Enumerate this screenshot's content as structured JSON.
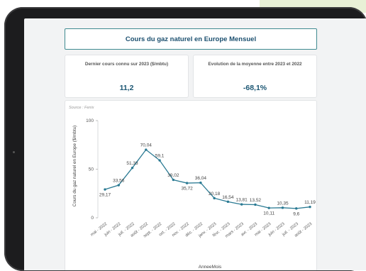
{
  "header": {
    "title": "Cours du gaz naturel en Europe Mensuel"
  },
  "kpis": [
    {
      "label": "Dernier cours connu sur 2023 ($/mbtu)",
      "value": "11,2"
    },
    {
      "label": "Evolution de la moyenne entre 2023 et 2022",
      "value": "-68,1%"
    }
  ],
  "chart": {
    "source": "Source : Fenix"
  },
  "colors": {
    "line": "#2a7a93",
    "title_border": "#3f8a90",
    "text_dark": "#1b4f6f"
  },
  "chart_data": {
    "type": "line",
    "xlabel": "AnneeMois",
    "ylabel": "Cours du gaz naturel en Europe ($/mbtu)",
    "ylim": [
      0,
      100
    ],
    "yticks": [
      0,
      50,
      100
    ],
    "grid": false,
    "categories": [
      "mai - 2022",
      "juin - 2022",
      "juil. - 2022",
      "août - 2022",
      "sept. - 2022",
      "oct. - 2022",
      "nov. - 2022",
      "déc. - 2022",
      "janv. - 2023",
      "févr. - 2023",
      "mars - 2023",
      "avr. - 2023",
      "mai - 2023",
      "juin - 2023",
      "juil. - 2023",
      "août - 2023"
    ],
    "values": [
      29.17,
      33.56,
      51.33,
      70.04,
      59.1,
      39.02,
      35.72,
      36.04,
      20.18,
      16.54,
      13.81,
      13.52,
      10.11,
      10.35,
      9.6,
      11.19
    ],
    "labels": [
      "29,17",
      "33,56",
      "51,33",
      "70,04",
      "59,1",
      "39,02",
      "35,72",
      "36,04",
      "20,18",
      "16,54",
      "13,81",
      "13,52",
      "10,11",
      "10,35",
      "9,6",
      "11,19"
    ]
  }
}
